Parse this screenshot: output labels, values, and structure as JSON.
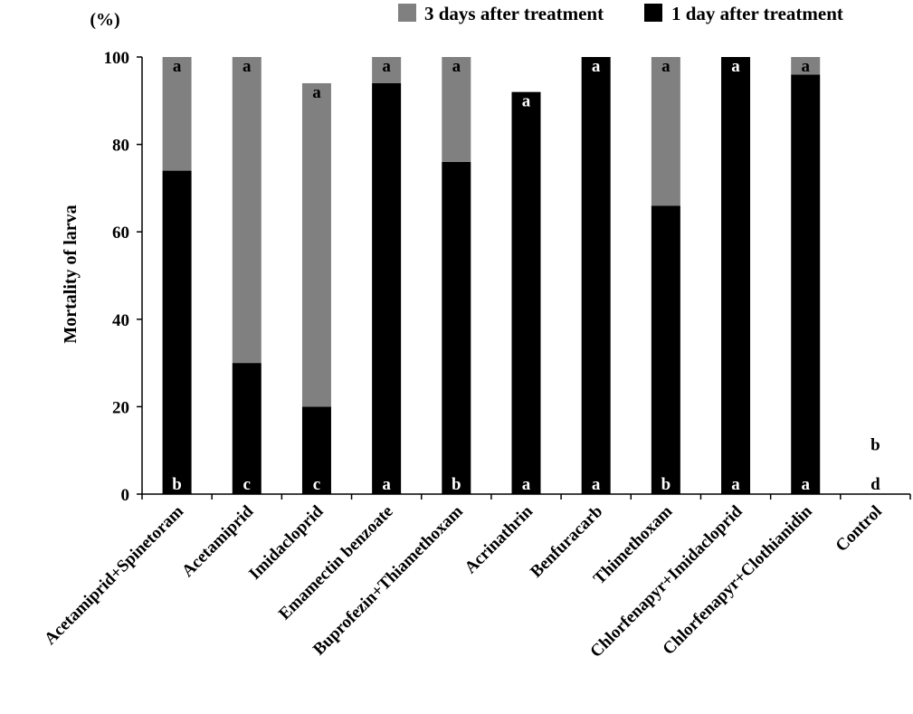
{
  "chart_data": {
    "type": "bar",
    "stacked": true,
    "title": "",
    "xlabel": "",
    "ylabel": "Mortality  of larva",
    "y_unit": "(%)",
    "ylim": [
      0,
      100
    ],
    "yticks": [
      0,
      20,
      40,
      60,
      80,
      100
    ],
    "grid": false,
    "legend_position": "top-right",
    "categories": [
      "Acetamiprid+Spinetoram",
      "Acetamiprid",
      "Imidacloprid",
      "Emamectin benzoate",
      "Buprofezin+Thiamethoxam",
      "Acrinathrin",
      "Benfuracarb",
      "Thimethoxam",
      "Chlorfenapyr+Imidacloprid",
      "Chlorfenapyr+Clothianidin",
      "Control"
    ],
    "series": [
      {
        "name": "1 day after treatment",
        "color": "#000000",
        "values": [
          74,
          30,
          20,
          94,
          76,
          92,
          100,
          66,
          100,
          96,
          0
        ],
        "letters": [
          "b",
          "c",
          "c",
          "a",
          "b",
          "a",
          "a",
          "b",
          "a",
          "a",
          "d"
        ]
      },
      {
        "name": "3 days after treatment",
        "color": "#808080",
        "values": [
          26,
          70,
          74,
          6,
          24,
          0,
          0,
          34,
          0,
          4,
          0
        ],
        "letters": [
          "a",
          "a",
          "a",
          "a",
          "a",
          "a",
          "a",
          "a",
          "a",
          "a",
          "b"
        ]
      }
    ],
    "legend_order": [
      "3 days after treatment",
      "1 day after treatment"
    ]
  }
}
